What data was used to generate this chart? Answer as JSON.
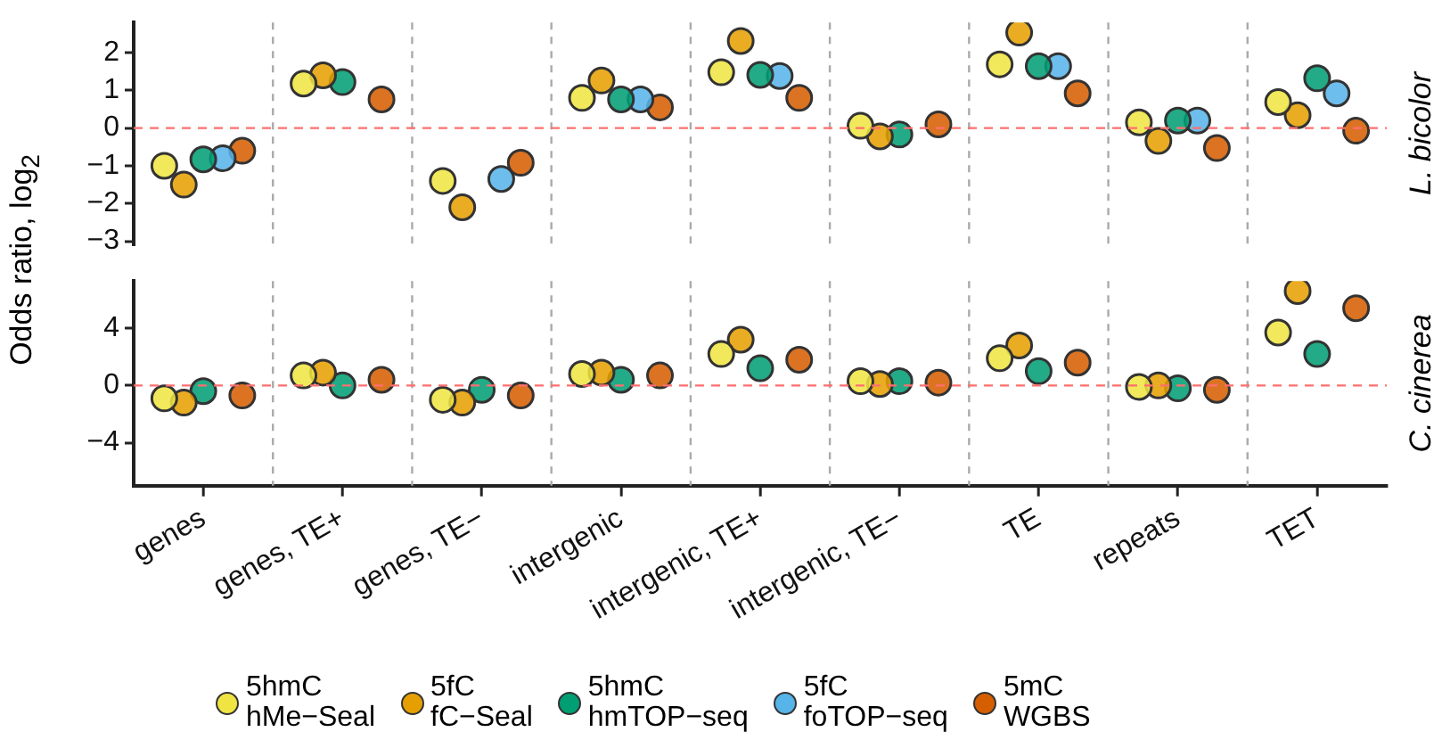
{
  "chart_data": [
    {
      "type": "scatter",
      "annotations": [
        "L. bicolor"
      ],
      "ylabel": "Odds ratio, log$_{2}$",
      "legend": "bottom",
      "categories": [
        null,
        null,
        null,
        null,
        null,
        null,
        null,
        null,
        null
      ],
      "series": [
        {
          "name": "5hmC\nhMe−Seal",
          "color": "#f0e442",
          "values": [
            -1.0,
            1.18,
            -1.4,
            0.8,
            1.48,
            0.06,
            1.69,
            0.15,
            0.69
          ]
        },
        {
          "name": "5fC\nfC−Seal",
          "color": "#e69f00",
          "values": [
            -1.5,
            1.4,
            -2.1,
            1.26,
            2.31,
            -0.22,
            2.53,
            -0.34,
            0.34
          ]
        },
        {
          "name": "5hmC\nhmTOP−seq",
          "color": "#009e73",
          "values": [
            -0.83,
            1.22,
            null,
            0.76,
            1.41,
            -0.17,
            1.64,
            0.2,
            1.32
          ]
        },
        {
          "name": "5fC\nfoTOP−seq",
          "color": "#56b4e9",
          "values": [
            -0.8,
            null,
            -1.35,
            0.76,
            1.38,
            null,
            1.64,
            0.2,
            0.92
          ]
        },
        {
          "name": "5mC\nWGBS",
          "color": "#d55e00",
          "values": [
            -0.6,
            0.76,
            -0.92,
            0.55,
            0.8,
            0.1,
            0.92,
            -0.53,
            -0.07
          ]
        }
      ],
      "ylim": [
        -3.1,
        2.8
      ],
      "yticks": [
        -3,
        -2,
        -1,
        0,
        1,
        2
      ],
      "grid": "x",
      "marker": "circle",
      "tick_labels": "y",
      "ref_lines": [
        {
          "axis": "y",
          "value": 0,
          "color": "#ff6f6f",
          "line_style": "dashed"
        }
      ]
    },
    {
      "type": "scatter",
      "annotations": [
        "C. cinerea"
      ],
      "categories": [
        "genes",
        "genes, TE+",
        "genes, TE−",
        "intergenic",
        "intergenic, TE+",
        "intergenic, TE−",
        "TE",
        "repeats",
        "TET"
      ],
      "series": [
        {
          "color": "#f0e442",
          "values": [
            -0.9,
            0.7,
            -1.0,
            0.8,
            2.2,
            0.3,
            1.9,
            -0.1,
            3.7
          ]
        },
        {
          "color": "#e69f00",
          "values": [
            -1.2,
            0.9,
            -1.2,
            0.9,
            3.2,
            0.1,
            2.8,
            0,
            6.6
          ]
        },
        {
          "color": "#009e73",
          "values": [
            -0.4,
            0,
            -0.3,
            0.4,
            1.2,
            0.3,
            1.0,
            -0.2,
            2.2
          ]
        },
        {
          "color": "#d55e00",
          "values": [
            -0.7,
            0.4,
            -0.7,
            0.7,
            1.8,
            0.2,
            1.6,
            -0.3,
            5.4
          ]
        }
      ],
      "ylim": [
        -7,
        7.3
      ],
      "yticks": [
        -4,
        0,
        4
      ],
      "grid": "x",
      "marker": "circle",
      "ref_lines": [
        {
          "axis": "y",
          "value": 0,
          "color": "#ff6f6f",
          "line_style": "dashed"
        }
      ]
    }
  ]
}
